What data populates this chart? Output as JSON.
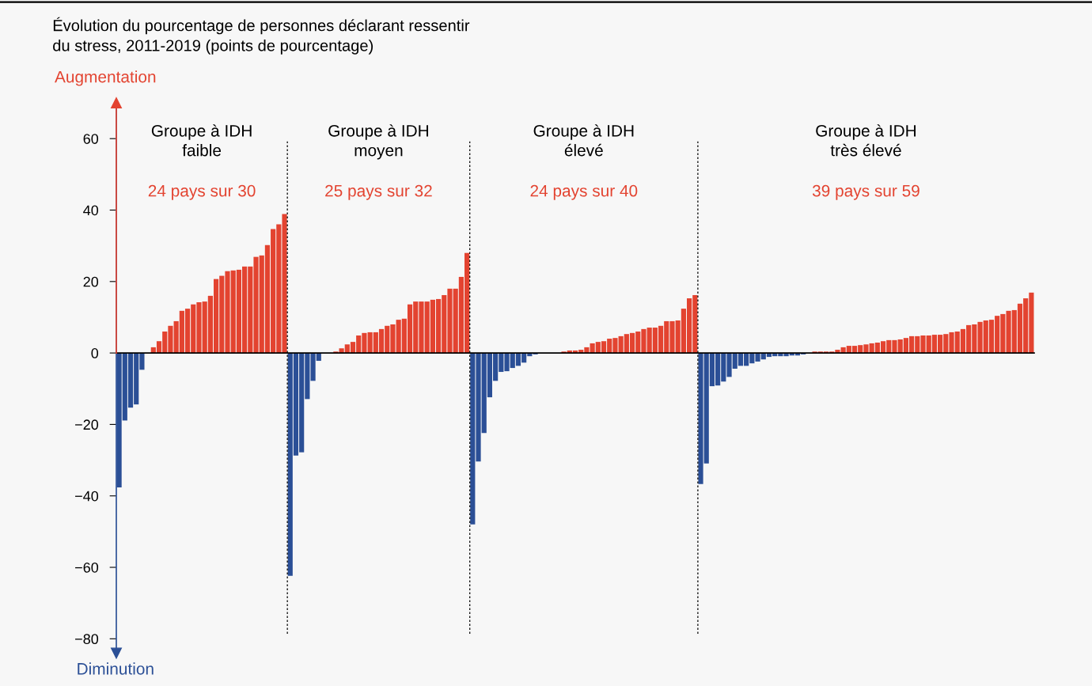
{
  "chart_data": {
    "type": "bar",
    "title": "Évolution du pourcentage de personnes déclarant ressentir\ndu stress, 2011-2019 (points de pourcentage)",
    "annotations": [
      "Augmentation",
      "Diminution",
      "Groupe à IDH\nfaible",
      "24 pays sur 30",
      "Groupe à IDH\nmoyen",
      "25 pays sur 32",
      "Groupe à IDH\nélevé",
      "24 pays sur 40",
      "Groupe à IDH\ntrès élevé",
      "39 pays sur 59"
    ],
    "categories": [
      null,
      null,
      null,
      null,
      null,
      null,
      null,
      null,
      null,
      null,
      null,
      null,
      null,
      null,
      null,
      null,
      null,
      null,
      null,
      null,
      null,
      null,
      null,
      null,
      null,
      null,
      null,
      null,
      null,
      null,
      null,
      null,
      null,
      null,
      null,
      null,
      null,
      null,
      null,
      null,
      null,
      null,
      null,
      null,
      null,
      null,
      null,
      null,
      null,
      null,
      null,
      null,
      null,
      null,
      null,
      null,
      null,
      null,
      null,
      null,
      null,
      null,
      null,
      null,
      null,
      null,
      null,
      null,
      null,
      null,
      null,
      null,
      null,
      null,
      null,
      null,
      null,
      null,
      null,
      null,
      null,
      null,
      null,
      null,
      null,
      null,
      null,
      null,
      null,
      null,
      null,
      null,
      null,
      null,
      null,
      null,
      null,
      null,
      null,
      null,
      null,
      null,
      null,
      null,
      null,
      null,
      null,
      null,
      null,
      null,
      null,
      null,
      null,
      null,
      null,
      null,
      null,
      null,
      null,
      null,
      null,
      null,
      null,
      null,
      null,
      null,
      null,
      null,
      null,
      null,
      null,
      null,
      null,
      null,
      null,
      null,
      null,
      null,
      null,
      null,
      null,
      null,
      null,
      null,
      null,
      null,
      null,
      null,
      null,
      null,
      null,
      null,
      null,
      null,
      null,
      null,
      null,
      null,
      null,
      null,
      null
    ],
    "values": [
      -37.6,
      -18.9,
      -15.3,
      -14.4,
      -4.7,
      0,
      1.6,
      3.3,
      6.0,
      7.6,
      8.9,
      11.8,
      12.4,
      13.6,
      14.2,
      14.4,
      16.0,
      20.7,
      21.6,
      22.9,
      23.1,
      23.3,
      24.2,
      24.2,
      26.9,
      27.3,
      30.2,
      34.7,
      36.0,
      38.9,
      -62.4,
      -28.7,
      -27.8,
      -12.9,
      -7.8,
      -2.2,
      0,
      0,
      0.4,
      1.3,
      2.4,
      3.1,
      4.9,
      5.6,
      5.8,
      5.8,
      6.7,
      7.6,
      8.0,
      9.3,
      9.6,
      13.6,
      14.4,
      14.4,
      14.4,
      14.9,
      15.1,
      16.2,
      18.0,
      18.0,
      21.3,
      28.0,
      -48.0,
      -30.4,
      -22.4,
      -12.4,
      -7.8,
      -5.3,
      -5.1,
      -4.2,
      -3.6,
      -2.7,
      -0.9,
      -0.4,
      0,
      0,
      0,
      0,
      0.4,
      0.7,
      0.7,
      0.9,
      1.6,
      2.7,
      3.1,
      3.3,
      4.0,
      4.2,
      4.7,
      5.3,
      5.6,
      6.0,
      6.7,
      7.1,
      7.1,
      7.6,
      8.9,
      8.9,
      9.1,
      12.4,
      15.3,
      16.2,
      -36.7,
      -30.9,
      -9.3,
      -9.1,
      -8.0,
      -6.7,
      -4.4,
      -3.6,
      -3.6,
      -2.9,
      -2.4,
      -1.8,
      -1.1,
      -0.9,
      -0.9,
      -0.9,
      -0.7,
      -0.7,
      -0.4,
      0,
      0.4,
      0.4,
      0.4,
      0.4,
      0.9,
      1.6,
      2.0,
      2.0,
      2.2,
      2.4,
      2.7,
      2.9,
      3.3,
      3.6,
      3.6,
      3.8,
      4.2,
      4.7,
      4.7,
      4.9,
      4.9,
      5.1,
      5.1,
      5.3,
      5.8,
      6.0,
      6.7,
      7.8,
      8.0,
      8.7,
      9.1,
      9.3,
      10.4,
      10.9,
      11.8,
      12.0,
      13.8,
      15.3,
      16.9
    ],
    "colors": [
      "#2b4f96",
      "#2b4f96",
      "#2b4f96",
      "#2b4f96",
      "#2b4f96",
      "#e34330",
      "#e34330",
      "#e34330",
      "#e34330",
      "#e34330",
      "#e34330",
      "#e34330",
      "#e34330",
      "#e34330",
      "#e34330",
      "#e34330",
      "#e34330",
      "#e34330",
      "#e34330",
      "#e34330",
      "#e34330",
      "#e34330",
      "#e34330",
      "#e34330",
      "#e34330",
      "#e34330",
      "#e34330",
      "#e34330",
      "#e34330",
      "#e34330",
      "#2b4f96",
      "#2b4f96",
      "#2b4f96",
      "#2b4f96",
      "#2b4f96",
      "#2b4f96",
      "#e34330",
      "#e34330",
      "#e34330",
      "#e34330",
      "#e34330",
      "#e34330",
      "#e34330",
      "#e34330",
      "#e34330",
      "#e34330",
      "#e34330",
      "#e34330",
      "#e34330",
      "#e34330",
      "#e34330",
      "#e34330",
      "#e34330",
      "#e34330",
      "#e34330",
      "#e34330",
      "#e34330",
      "#e34330",
      "#e34330",
      "#e34330",
      "#e34330",
      "#e34330",
      "#2b4f96",
      "#2b4f96",
      "#2b4f96",
      "#2b4f96",
      "#2b4f96",
      "#2b4f96",
      "#2b4f96",
      "#2b4f96",
      "#2b4f96",
      "#2b4f96",
      "#2b4f96",
      "#2b4f96",
      "#e34330",
      "#e34330",
      "#e34330",
      "#e34330",
      "#e34330",
      "#e34330",
      "#e34330",
      "#e34330",
      "#e34330",
      "#e34330",
      "#e34330",
      "#e34330",
      "#e34330",
      "#e34330",
      "#e34330",
      "#e34330",
      "#e34330",
      "#e34330",
      "#e34330",
      "#e34330",
      "#e34330",
      "#e34330",
      "#e34330",
      "#e34330",
      "#e34330",
      "#e34330",
      "#e34330",
      "#e34330",
      "#2b4f96",
      "#2b4f96",
      "#2b4f96",
      "#2b4f96",
      "#2b4f96",
      "#2b4f96",
      "#2b4f96",
      "#2b4f96",
      "#2b4f96",
      "#2b4f96",
      "#2b4f96",
      "#2b4f96",
      "#2b4f96",
      "#2b4f96",
      "#2b4f96",
      "#2b4f96",
      "#2b4f96",
      "#2b4f96",
      "#2b4f96",
      "#e34330",
      "#e34330",
      "#e34330",
      "#e34330",
      "#e34330",
      "#e34330",
      "#e34330",
      "#e34330",
      "#e34330",
      "#e34330",
      "#e34330",
      "#e34330",
      "#e34330",
      "#e34330",
      "#e34330",
      "#e34330",
      "#e34330",
      "#e34330",
      "#e34330",
      "#e34330",
      "#e34330",
      "#e34330",
      "#e34330",
      "#e34330",
      "#e34330",
      "#e34330",
      "#e34330",
      "#e34330",
      "#e34330",
      "#e34330",
      "#e34330",
      "#e34330",
      "#e34330",
      "#e34330",
      "#e34330",
      "#e34330",
      "#e34330",
      "#e34330",
      "#e34330",
      "#e34330"
    ],
    "ylim": [
      -84,
      70
    ],
    "yticks": [
      {
        "value": -80,
        "label": "−80"
      },
      {
        "value": -60,
        "label": "−60"
      },
      {
        "value": -40,
        "label": "−40"
      },
      {
        "value": -20,
        "label": "−20"
      },
      0,
      20,
      40,
      60
    ],
    "tick_labels": "y"
  }
}
